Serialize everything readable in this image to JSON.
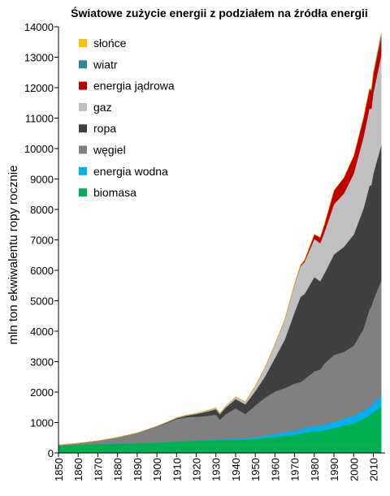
{
  "chart_data": {
    "type": "area",
    "stacked": true,
    "title": "Światowe zużycie energii z podziałem na źródła energii",
    "xlabel": "",
    "ylabel": "mln ton ekwiwalentu ropy rocznie",
    "xlim": [
      1850,
      2016
    ],
    "ylim": [
      0,
      14000
    ],
    "x_ticks": [
      1850,
      1860,
      1870,
      1880,
      1890,
      1900,
      1910,
      1920,
      1930,
      1940,
      1950,
      1960,
      1970,
      1980,
      1990,
      2000,
      2010
    ],
    "y_ticks": [
      0,
      1000,
      2000,
      3000,
      4000,
      5000,
      6000,
      7000,
      8000,
      9000,
      10000,
      11000,
      12000,
      13000,
      14000
    ],
    "grid": false,
    "legend_position": "top-left",
    "x": [
      1850,
      1860,
      1870,
      1880,
      1890,
      1900,
      1905,
      1910,
      1915,
      1920,
      1925,
      1930,
      1932,
      1935,
      1940,
      1945,
      1950,
      1955,
      1960,
      1965,
      1970,
      1973,
      1975,
      1980,
      1983,
      1985,
      1990,
      1995,
      2000,
      2005,
      2008,
      2009,
      2010,
      2014
    ],
    "series": [
      {
        "name": "biomasa",
        "color": "#00b050",
        "values": [
          240,
          270,
          290,
          310,
          320,
          340,
          360,
          380,
          390,
          400,
          410,
          420,
          420,
          430,
          440,
          440,
          460,
          500,
          530,
          570,
          600,
          640,
          670,
          710,
          720,
          750,
          820,
          900,
          980,
          1120,
          1250,
          1280,
          1330,
          1520
        ]
      },
      {
        "name": "energia wodna",
        "color": "#00b0f0",
        "values": [
          0,
          0,
          0,
          0,
          0,
          2,
          3,
          5,
          8,
          10,
          15,
          20,
          22,
          25,
          30,
          40,
          50,
          70,
          90,
          110,
          130,
          140,
          150,
          170,
          175,
          180,
          200,
          220,
          240,
          260,
          270,
          275,
          300,
          340
        ]
      },
      {
        "name": "węgiel",
        "color": "#808080",
        "values": [
          20,
          50,
          110,
          200,
          330,
          520,
          620,
          730,
          780,
          780,
          790,
          820,
          650,
          820,
          1000,
          800,
          1050,
          1250,
          1400,
          1450,
          1550,
          1550,
          1600,
          1800,
          1850,
          2000,
          2200,
          2200,
          2300,
          2700,
          3200,
          3250,
          3400,
          3800
        ]
      },
      {
        "name": "ropa",
        "color": "#404040",
        "values": [
          0,
          0,
          0,
          2,
          5,
          12,
          20,
          30,
          50,
          90,
          140,
          180,
          180,
          220,
          300,
          320,
          470,
          700,
          1100,
          1600,
          2350,
          2800,
          2800,
          3100,
          2900,
          2950,
          3300,
          3450,
          3650,
          3950,
          4050,
          4000,
          4150,
          4450
        ]
      },
      {
        "name": "gaz",
        "color": "#c0c0c0",
        "values": [
          0,
          0,
          0,
          0,
          3,
          5,
          8,
          12,
          15,
          20,
          30,
          45,
          40,
          50,
          70,
          80,
          170,
          300,
          450,
          650,
          900,
          1000,
          1050,
          1250,
          1250,
          1350,
          1650,
          1750,
          2000,
          2350,
          2550,
          2500,
          2650,
          2950
        ]
      },
      {
        "name": "energia jądrowa",
        "color": "#c00000",
        "values": [
          0,
          0,
          0,
          0,
          0,
          0,
          0,
          0,
          0,
          0,
          0,
          0,
          0,
          0,
          0,
          0,
          0,
          0,
          2,
          8,
          20,
          40,
          60,
          150,
          190,
          250,
          450,
          520,
          580,
          620,
          610,
          590,
          600,
          570
        ]
      },
      {
        "name": "wiatr",
        "color": "#31849b",
        "values": [
          0,
          0,
          0,
          0,
          0,
          0,
          0,
          0,
          0,
          0,
          0,
          0,
          0,
          0,
          0,
          0,
          0,
          0,
          0,
          0,
          0,
          0,
          0,
          0,
          0,
          0,
          0,
          1,
          5,
          20,
          40,
          50,
          70,
          150
        ]
      },
      {
        "name": "słońce",
        "color": "#ffc000",
        "values": [
          0,
          0,
          0,
          0,
          0,
          0,
          0,
          0,
          0,
          0,
          0,
          0,
          0,
          0,
          0,
          0,
          0,
          0,
          0,
          0,
          0,
          0,
          0,
          0,
          0,
          0,
          0,
          0,
          0,
          1,
          2,
          3,
          6,
          40
        ]
      }
    ]
  }
}
